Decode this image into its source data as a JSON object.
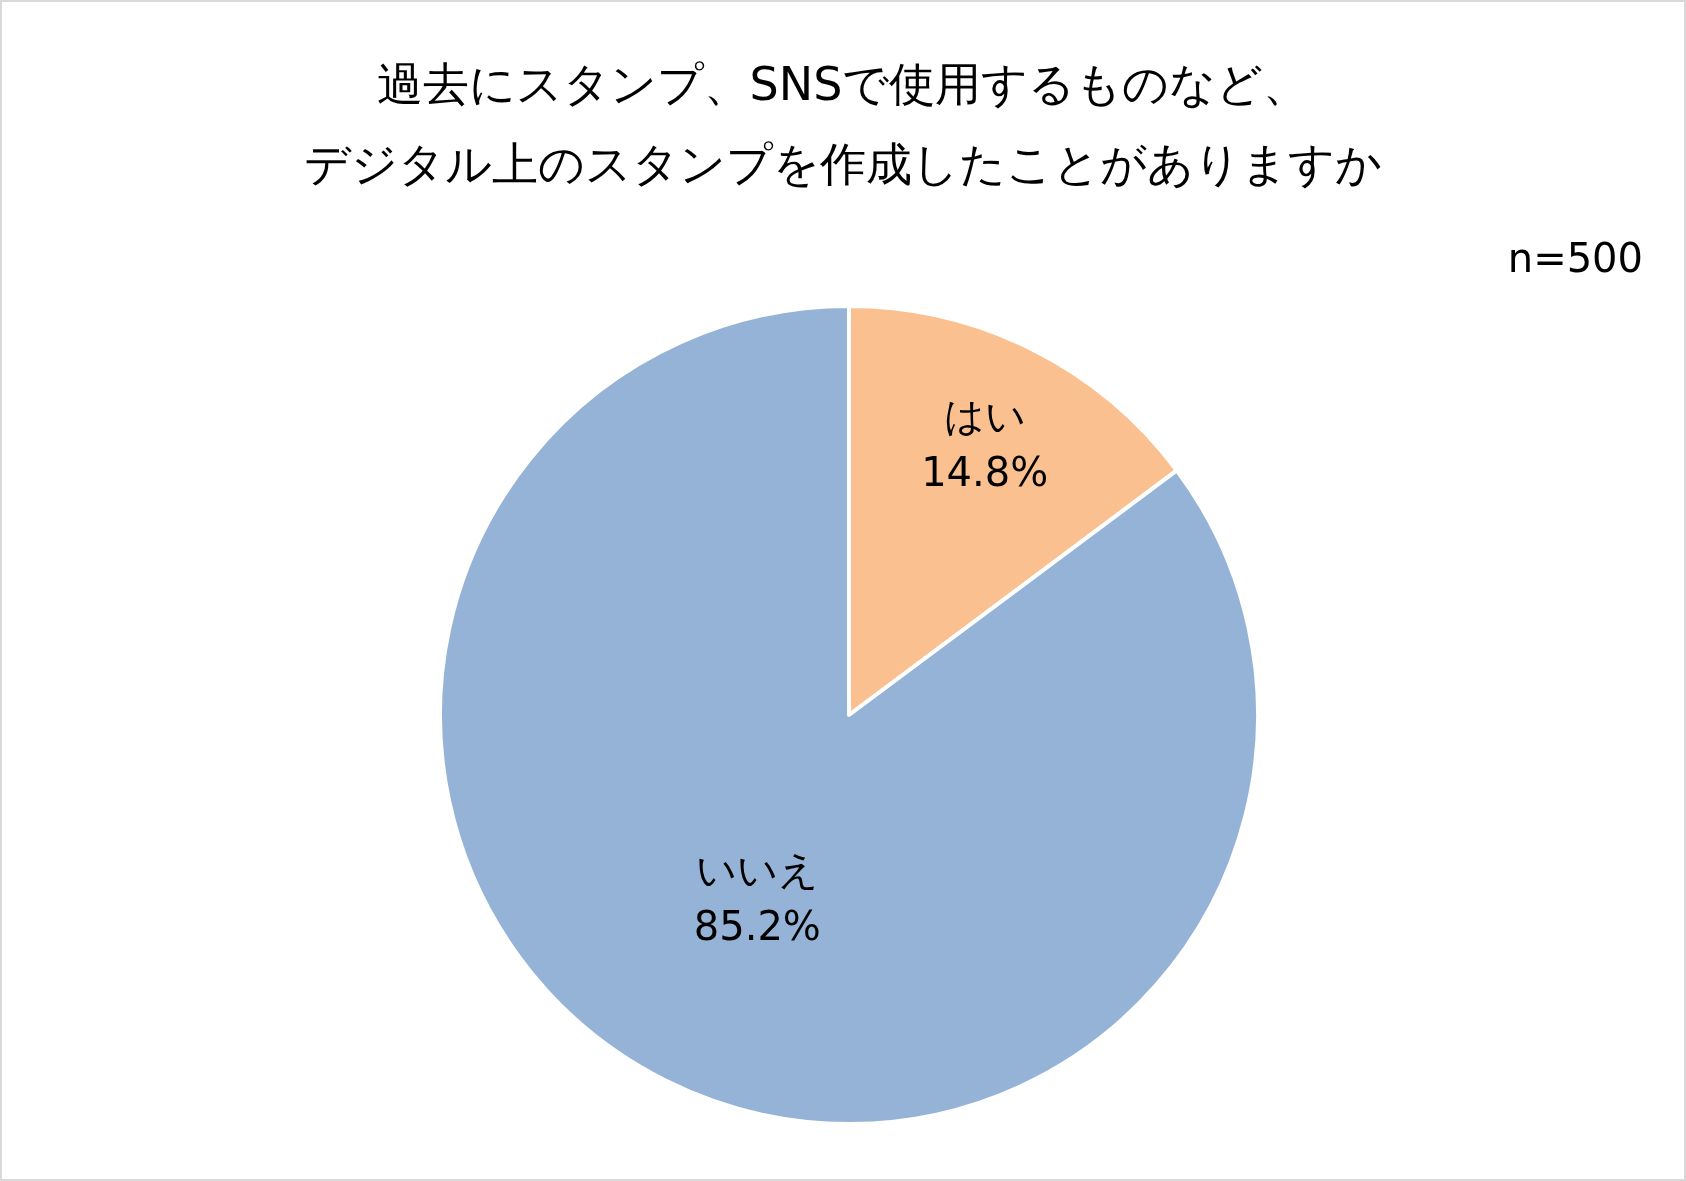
{
  "chart_data": {
    "type": "pie",
    "title": "過去にスタンプ、SNSで使用するものなど、デジタル上のスタンプを作成したことがありますか",
    "categories": [
      "はい",
      "いいえ"
    ],
    "values": [
      14.8,
      85.2
    ],
    "colors": [
      "#fac090",
      "#95b3d7"
    ],
    "value_labels": [
      "14.8%",
      "85.2%"
    ],
    "annotations": [
      "n=500"
    ],
    "legend": false
  }
}
